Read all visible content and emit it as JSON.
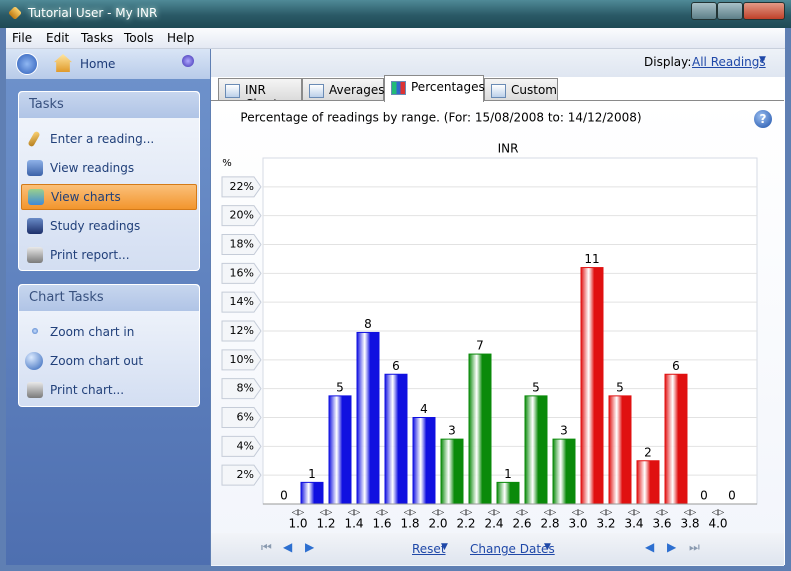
{
  "window": {
    "title": "Tutorial User - My INR"
  },
  "menu": [
    "File",
    "Edit",
    "Tasks",
    "Tools",
    "Help"
  ],
  "sidebar": {
    "home": "Home",
    "tasks_header": "Tasks",
    "tasks": [
      "Enter a reading...",
      "View readings",
      "View charts",
      "Study readings",
      "Print report..."
    ],
    "chart_tasks_header": "Chart Tasks",
    "chart_tasks": [
      "Zoom chart in",
      "Zoom chart out",
      "Print chart..."
    ]
  },
  "toolbar": {
    "display_label": "Display:",
    "display_value": "All Readings"
  },
  "tabs": [
    "INR Chart",
    "Averages",
    "Percentages",
    "Custom"
  ],
  "footer": {
    "reset": "Reset",
    "change_dates": "Change Dates"
  },
  "chart_data": {
    "type": "bar",
    "subtitle": "Percentage of readings by range. (For: 15/08/2008 to: 14/12/2008)",
    "title": "INR",
    "y_label": "%",
    "categories": [
      null,
      null,
      null,
      null,
      null,
      null,
      null,
      null,
      null,
      null,
      null,
      null,
      null,
      null,
      null,
      null,
      null
    ],
    "boundaries": [
      "1.0",
      "1.2",
      "1.4",
      "1.6",
      "1.8",
      "2.0",
      "2.2",
      "2.4",
      "2.6",
      "2.8",
      "3.0",
      "3.2",
      "3.4",
      "3.6",
      "3.8",
      "4.0"
    ],
    "values": [
      0,
      1.5,
      7.5,
      11.9,
      9.0,
      6.0,
      4.5,
      10.4,
      1.5,
      7.5,
      4.5,
      16.4,
      7.5,
      3.0,
      9.0,
      0,
      0
    ],
    "counts": [
      0,
      1,
      5,
      8,
      6,
      4,
      3,
      7,
      1,
      5,
      3,
      11,
      5,
      2,
      6,
      0,
      0
    ],
    "colors": [
      "#1010e0",
      "#1010e0",
      "#1010e0",
      "#1010e0",
      "#1010e0",
      "#1010e0",
      "#0a8a0a",
      "#0a8a0a",
      "#0a8a0a",
      "#0a8a0a",
      "#0a8a0a",
      "#e01010",
      "#e01010",
      "#e01010",
      "#e01010",
      "#e01010",
      "#e01010"
    ],
    "ylim": [
      0,
      24
    ],
    "yticks": [
      {
        "value": 2,
        "label": "2%"
      },
      {
        "value": 4,
        "label": "4%"
      },
      {
        "value": 6,
        "label": "6%"
      },
      {
        "value": 8,
        "label": "8%"
      },
      {
        "value": 10,
        "label": "10%"
      },
      {
        "value": 12,
        "label": "12%"
      },
      {
        "value": 14,
        "label": "14%"
      },
      {
        "value": 16,
        "label": "16%"
      },
      {
        "value": 18,
        "label": "18%"
      },
      {
        "value": 20,
        "label": "20%"
      },
      {
        "value": 22,
        "label": "22%"
      }
    ],
    "grid": true
  }
}
